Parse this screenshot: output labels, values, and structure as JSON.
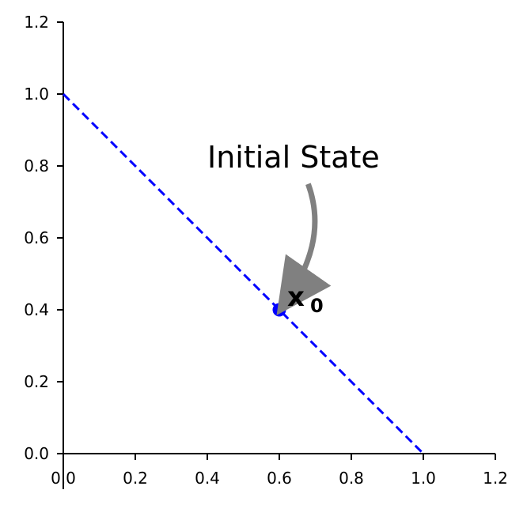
{
  "chart_data": {
    "type": "line",
    "title": "",
    "xlabel": "",
    "ylabel": "",
    "xlim": [
      0.0,
      1.2
    ],
    "ylim": [
      0.0,
      1.2
    ],
    "xticks": [
      0.0,
      0.2,
      0.4,
      0.6,
      0.8,
      1.0,
      1.2
    ],
    "yticks": [
      0.0,
      0.2,
      0.4,
      0.6,
      0.8,
      1.0,
      1.2
    ],
    "xtick_labels": [
      "0.0",
      "0.2",
      "0.4",
      "0.6",
      "0.8",
      "1.0",
      "1.2"
    ],
    "ytick_labels": [
      "0.0",
      "0.2",
      "0.4",
      "0.6",
      "0.8",
      "1.0",
      "1.2"
    ],
    "grid": false,
    "series": [
      {
        "type": "line",
        "style": "dashed",
        "color": "#0000ff",
        "x": [
          0.0,
          1.0
        ],
        "y": [
          1.0,
          0.0
        ]
      },
      {
        "type": "scatter",
        "color": "#0000ff",
        "x": [
          0.6
        ],
        "y": [
          0.4
        ]
      }
    ],
    "point_label": {
      "main": "x",
      "subscript": "0",
      "x": 0.6,
      "y": 0.4
    },
    "annotation": {
      "text": "Initial State",
      "text_x": 0.4,
      "text_y": 0.8,
      "arrow_color": "#808080",
      "arrow_from": [
        0.68,
        0.75
      ],
      "arrow_to": [
        0.61,
        0.41
      ]
    }
  }
}
